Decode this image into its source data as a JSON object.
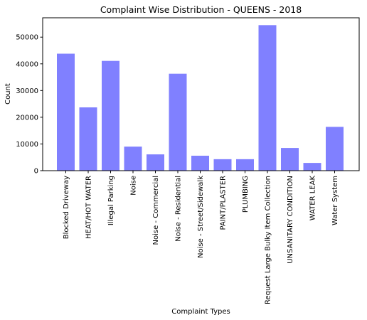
{
  "chart_data": {
    "type": "bar",
    "title": "Complaint Wise Distribution - QUEENS - 2018",
    "xlabel": "Complaint Types",
    "ylabel": "Count",
    "categories": [
      "Blocked Driveway",
      "HEAT/HOT WATER",
      "Illegal Parking",
      "Noise",
      "Noise - Commercial",
      "Noise - Residential",
      "Noise - Street/Sidewalk",
      "PAINT/PLASTER",
      "PLUMBING",
      "Request Large Bulky Item Collection",
      "UNSANITARY CONDITION",
      "WATER LEAK",
      "Water System"
    ],
    "values": [
      43800,
      23700,
      41100,
      9000,
      6100,
      36300,
      5600,
      4300,
      4300,
      54500,
      8500,
      2900,
      16400
    ],
    "ylim": [
      0,
      57250
    ],
    "yticks": [
      0,
      10000,
      20000,
      30000,
      40000,
      50000
    ],
    "bar_color": "#8080ff",
    "grid": false,
    "legend": "none"
  }
}
